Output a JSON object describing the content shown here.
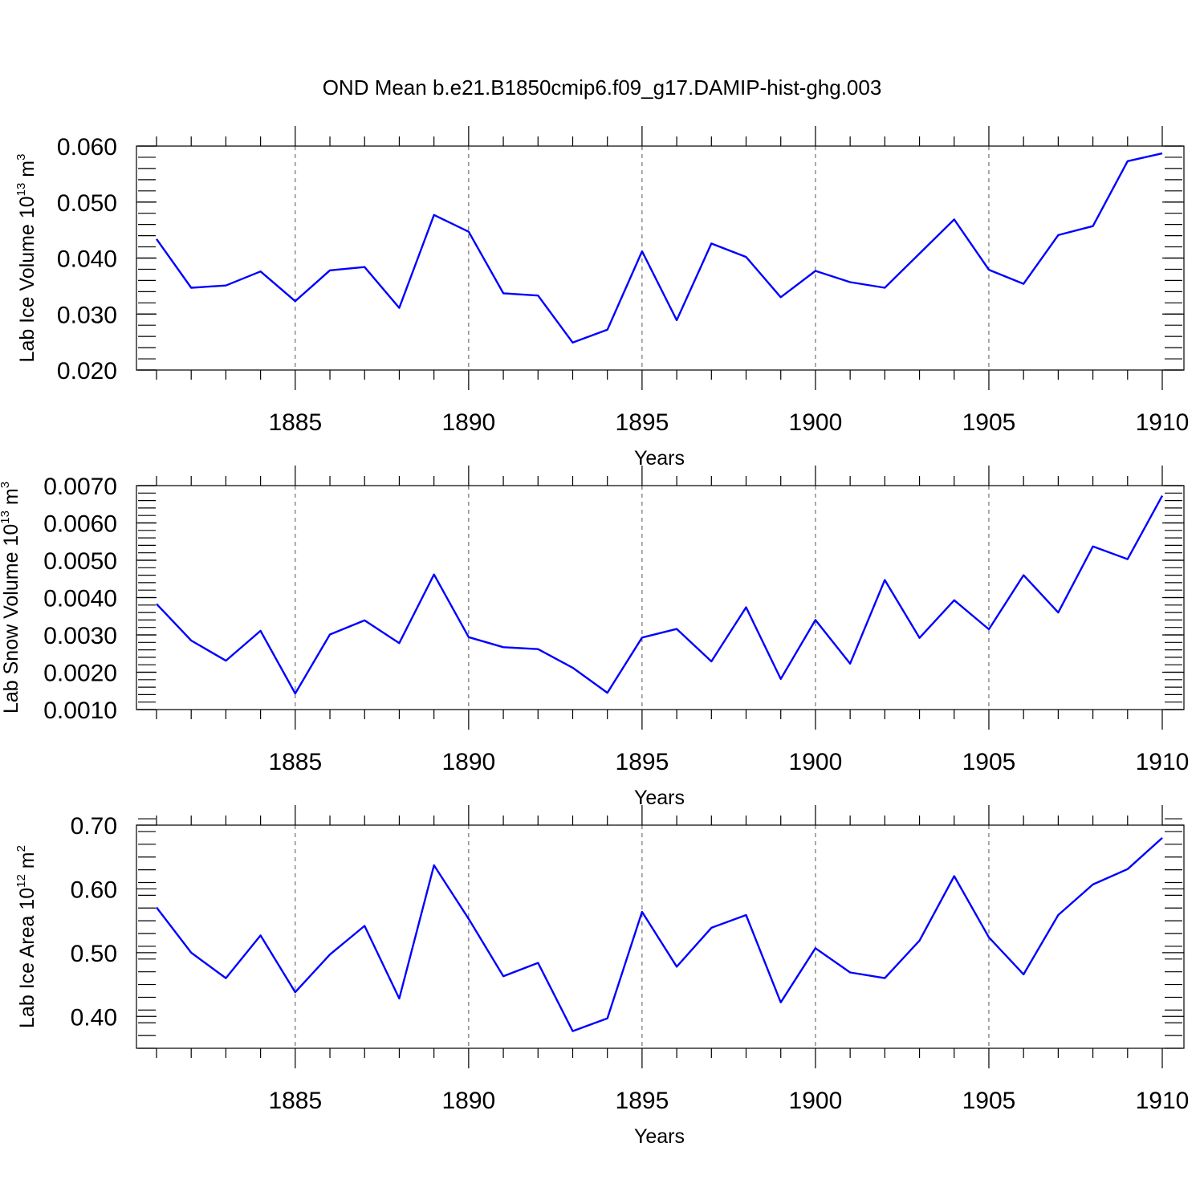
{
  "title": "OND Mean b.e21.B1850cmip6.f09_g17.DAMIP-hist-ghg.003",
  "colors": {
    "line": "#0000ff",
    "axis": "#000000",
    "grid": "#555555"
  },
  "chart_data": [
    {
      "type": "line",
      "ylabel": {
        "main": "Lab Ice Volume 10",
        "sup": "13",
        "unit": " m",
        "unit_sup": "3"
      },
      "xlabel": "Years",
      "xlim": [
        1881,
        1910
      ],
      "ylim": [
        0.02,
        0.06
      ],
      "yticks": [
        0.02,
        0.03,
        0.04,
        0.05,
        0.06
      ],
      "ytick_labels": [
        "0.020",
        "0.030",
        "0.040",
        "0.050",
        "0.060"
      ],
      "xticks": [
        1885,
        1890,
        1895,
        1900,
        1905,
        1910
      ],
      "xtick_labels": [
        "1885",
        "1890",
        "1895",
        "1900",
        "1905",
        "1910"
      ],
      "x": [
        1881,
        1882,
        1883,
        1884,
        1885,
        1886,
        1887,
        1888,
        1889,
        1890,
        1891,
        1892,
        1893,
        1894,
        1895,
        1896,
        1897,
        1898,
        1899,
        1900,
        1901,
        1902,
        1903,
        1904,
        1905,
        1906,
        1907,
        1908,
        1909,
        1910
      ],
      "values": [
        0.0434,
        0.0347,
        0.0351,
        0.0376,
        0.0323,
        0.0378,
        0.0384,
        0.0311,
        0.0477,
        0.0447,
        0.0337,
        0.0333,
        0.0249,
        0.0272,
        0.0412,
        0.0289,
        0.0426,
        0.0402,
        0.033,
        0.0377,
        0.0357,
        0.0347,
        0.0408,
        0.0469,
        0.0379,
        0.0354,
        0.0441,
        0.0457,
        0.0573,
        0.0587
      ]
    },
    {
      "type": "line",
      "ylabel": {
        "main": "Lab Snow Volume 10",
        "sup": "13",
        "unit": " m",
        "unit_sup": "3"
      },
      "xlabel": "Years",
      "xlim": [
        1881,
        1910
      ],
      "ylim": [
        0.001,
        0.007
      ],
      "yticks": [
        0.001,
        0.002,
        0.003,
        0.004,
        0.005,
        0.006,
        0.007
      ],
      "ytick_labels": [
        "0.0010",
        "0.0020",
        "0.0030",
        "0.0040",
        "0.0050",
        "0.0060",
        "0.0070"
      ],
      "xticks": [
        1885,
        1890,
        1895,
        1900,
        1905,
        1910
      ],
      "xtick_labels": [
        "1885",
        "1890",
        "1895",
        "1900",
        "1905",
        "1910"
      ],
      "x": [
        1881,
        1882,
        1883,
        1884,
        1885,
        1886,
        1887,
        1888,
        1889,
        1890,
        1891,
        1892,
        1893,
        1894,
        1895,
        1896,
        1897,
        1898,
        1899,
        1900,
        1901,
        1902,
        1903,
        1904,
        1905,
        1906,
        1907,
        1908,
        1909,
        1910
      ],
      "values": [
        0.00383,
        0.00285,
        0.00231,
        0.00311,
        0.00143,
        0.00301,
        0.00339,
        0.00278,
        0.00462,
        0.00294,
        0.00267,
        0.00262,
        0.00212,
        0.00145,
        0.00293,
        0.00316,
        0.00229,
        0.00374,
        0.00182,
        0.0034,
        0.00223,
        0.00447,
        0.00292,
        0.00393,
        0.00315,
        0.0046,
        0.0036,
        0.00537,
        0.00503,
        0.00673
      ]
    },
    {
      "type": "line",
      "ylabel": {
        "main": "Lab Ice Area 10",
        "sup": "12",
        "unit": " m",
        "unit_sup": "2"
      },
      "xlabel": "Years",
      "xlim": [
        1881,
        1910
      ],
      "ylim": [
        0.35,
        0.7
      ],
      "yticks": [
        0.4,
        0.5,
        0.6,
        0.7
      ],
      "ytick_labels": [
        "0.40",
        "0.50",
        "0.60",
        "0.70"
      ],
      "xticks": [
        1885,
        1890,
        1895,
        1900,
        1905,
        1910
      ],
      "xtick_labels": [
        "1885",
        "1890",
        "1895",
        "1900",
        "1905",
        "1910"
      ],
      "x": [
        1881,
        1882,
        1883,
        1884,
        1885,
        1886,
        1887,
        1888,
        1889,
        1890,
        1891,
        1892,
        1893,
        1894,
        1895,
        1896,
        1897,
        1898,
        1899,
        1900,
        1901,
        1902,
        1903,
        1904,
        1905,
        1906,
        1907,
        1908,
        1909,
        1910
      ],
      "values": [
        0.571,
        0.5,
        0.46,
        0.527,
        0.438,
        0.497,
        0.542,
        0.428,
        0.637,
        0.553,
        0.463,
        0.484,
        0.377,
        0.397,
        0.564,
        0.478,
        0.539,
        0.559,
        0.422,
        0.507,
        0.469,
        0.46,
        0.519,
        0.62,
        0.524,
        0.466,
        0.559,
        0.607,
        0.631,
        0.68
      ]
    }
  ]
}
